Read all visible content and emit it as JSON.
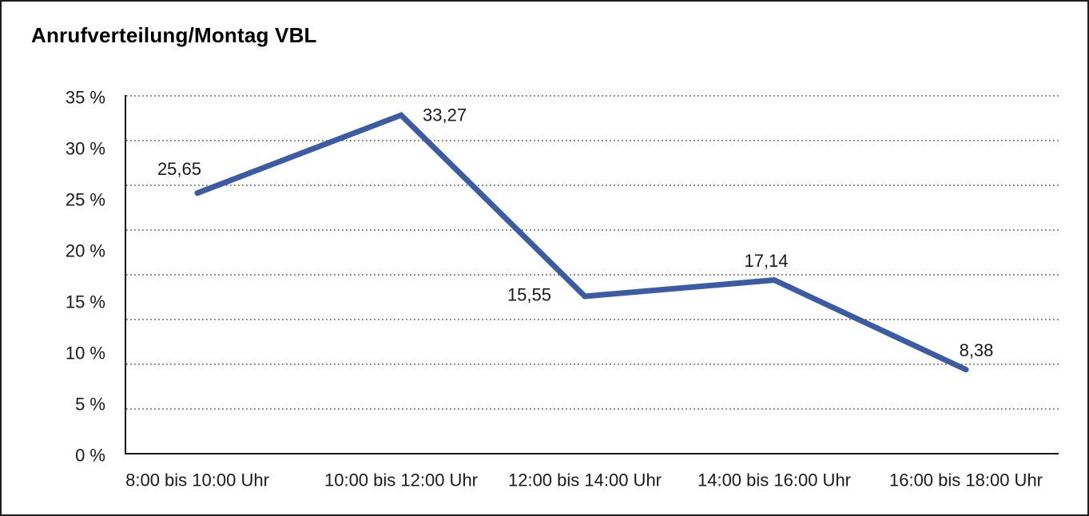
{
  "title": "Anrufverteilung/Montag VBL",
  "chart_data": {
    "type": "line",
    "title": "Anrufverteilung/Montag VBL",
    "categories": [
      "8:00 bis 10:00 Uhr",
      "10:00 bis 12:00 Uhr",
      "12:00 bis 14:00 Uhr",
      "14:00 bis 16:00 Uhr",
      "16:00 bis 18:00 Uhr"
    ],
    "values": [
      25.65,
      33.27,
      15.55,
      17.14,
      8.38
    ],
    "value_labels": [
      "25,65",
      "33,27",
      "15,55",
      "17,14",
      "8,38"
    ],
    "xlabel": "",
    "ylabel": "",
    "ylim": [
      0,
      35
    ],
    "ytick_step": 5,
    "ytick_labels_top_to_bottom": [
      "35 %",
      "30 %",
      "25 %",
      "20 %",
      "15 %",
      "10 %",
      "5 %",
      "0 %"
    ],
    "grid": "horizontal-dotted",
    "legend": "none",
    "colors": {
      "line": "#3B5BA5",
      "axis": "#1a1a1a",
      "gridline": "#3c3c3c",
      "text": "#1a1a1a",
      "background": "#ffffff",
      "border": "#1f1f1f"
    }
  }
}
